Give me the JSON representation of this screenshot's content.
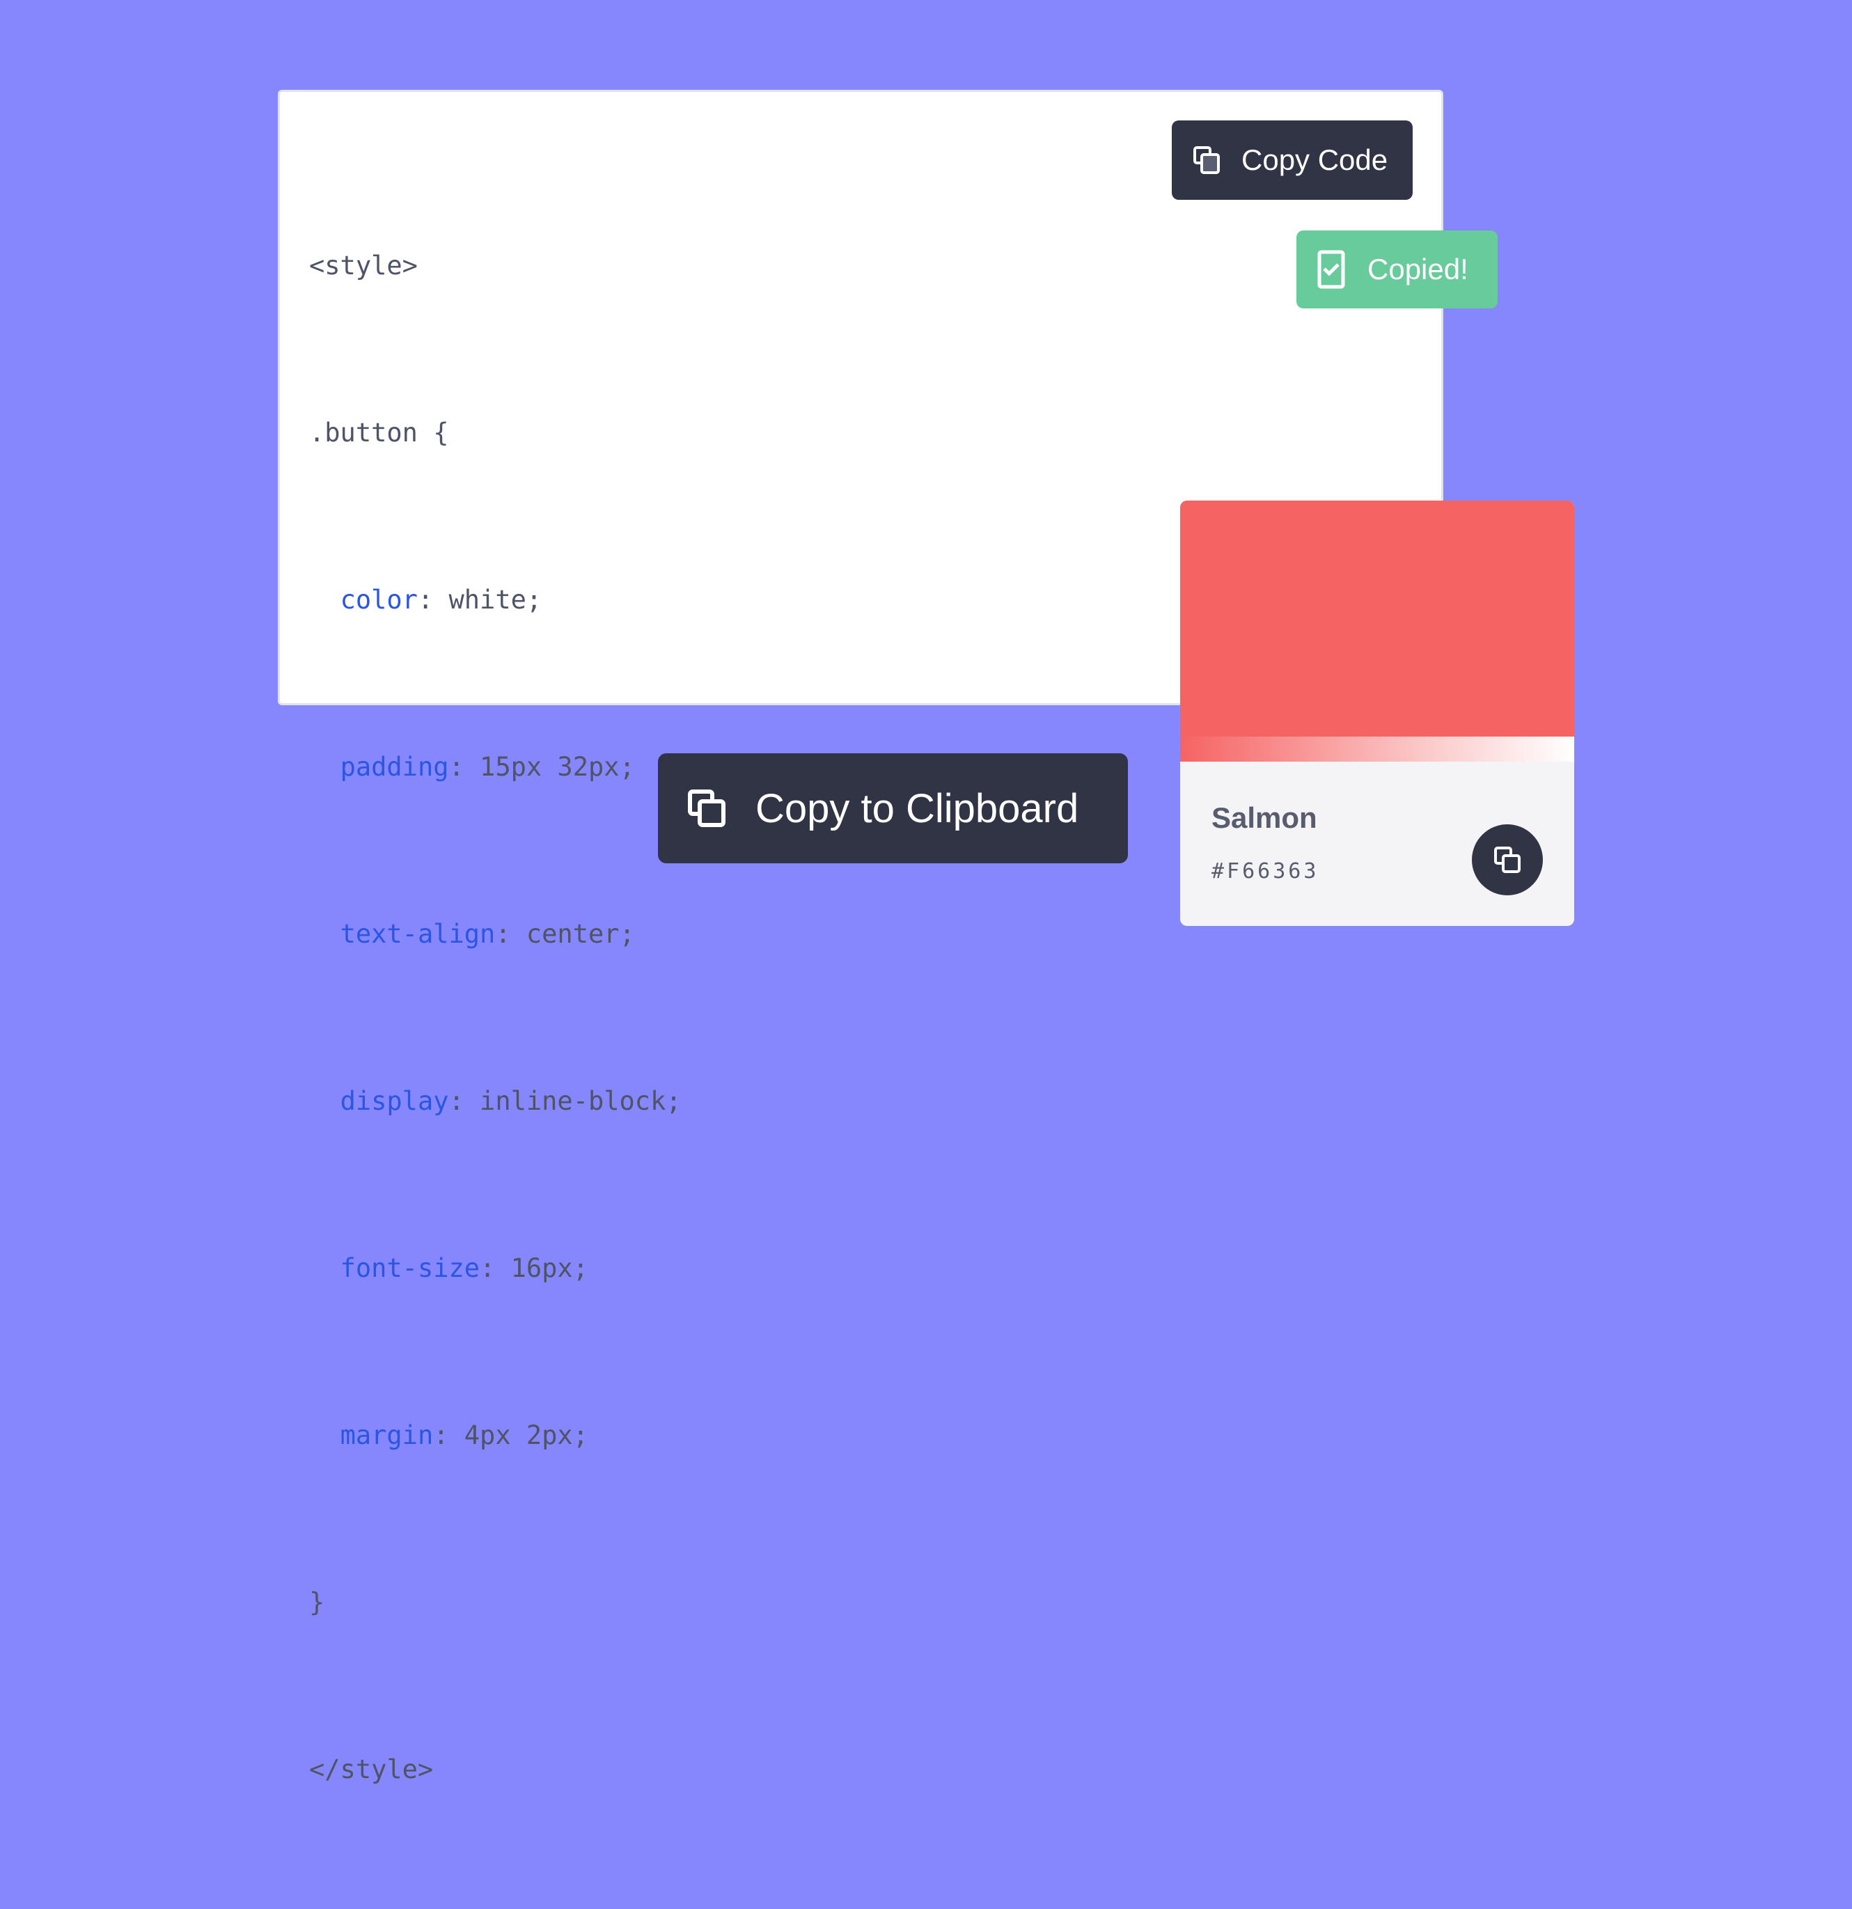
{
  "background_color": "#8787fd",
  "code_block": {
    "lines": [
      {
        "prop": "",
        "rest": "<style>"
      },
      {
        "prop": "",
        "rest": ".button {"
      },
      {
        "prop": "color",
        "rest": ": white;"
      },
      {
        "prop": "padding",
        "rest": ": 15px 32px;"
      },
      {
        "prop": "text-align",
        "rest": ": center;"
      },
      {
        "prop": "display",
        "rest": ": inline-block;"
      },
      {
        "prop": "font-size",
        "rest": ": 16px;"
      },
      {
        "prop": "margin",
        "rest": ": 4px 2px;"
      },
      {
        "prop": "",
        "rest": "}"
      },
      {
        "prop": "",
        "rest": "</style>"
      }
    ],
    "property_color": "#2c56e0"
  },
  "copy_code_button": {
    "label": "Copy Code",
    "icon": "copy-icon"
  },
  "copied_badge": {
    "label": "Copied!",
    "icon": "clipboard-check-icon",
    "color": "#68cb9b"
  },
  "copy_to_clipboard_button": {
    "label": "Copy to Clipboard",
    "icon": "copy-icon"
  },
  "color_swatch": {
    "name": "Salmon",
    "hex": "#F66363",
    "icon": "copy-icon"
  }
}
